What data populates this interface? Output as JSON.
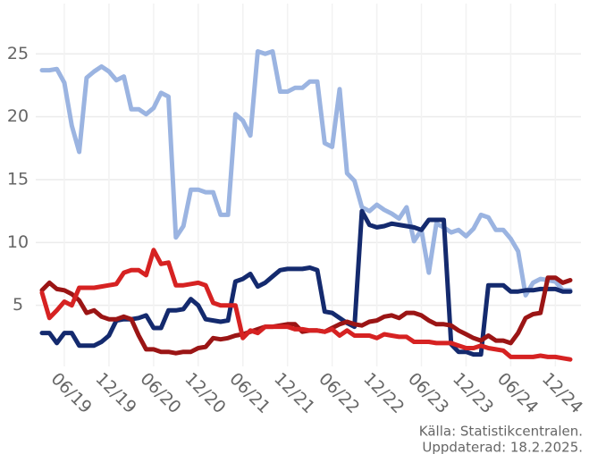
{
  "chart_data": {
    "type": "line",
    "source": "Källa: Statistikcentralen.",
    "updated": "Uppdaterad: 18.2.2025.",
    "x": [
      "03/19",
      "04/19",
      "05/19",
      "06/19",
      "07/19",
      "08/19",
      "09/19",
      "10/19",
      "11/19",
      "12/19",
      "01/20",
      "02/20",
      "03/20",
      "04/20",
      "05/20",
      "06/20",
      "07/20",
      "08/20",
      "09/20",
      "10/20",
      "11/20",
      "12/20",
      "01/21",
      "02/21",
      "03/21",
      "04/21",
      "05/21",
      "06/21",
      "07/21",
      "08/21",
      "09/21",
      "10/21",
      "11/21",
      "12/21",
      "01/22",
      "02/22",
      "03/22",
      "04/22",
      "05/22",
      "06/22",
      "07/22",
      "08/22",
      "09/22",
      "10/22",
      "11/22",
      "12/22",
      "01/23",
      "02/23",
      "03/23",
      "04/23",
      "05/23",
      "06/23",
      "07/23",
      "08/23",
      "09/23",
      "10/23",
      "11/23",
      "12/23",
      "01/24",
      "02/24",
      "03/24",
      "04/24",
      "05/24",
      "06/24",
      "07/24",
      "08/24",
      "09/24",
      "10/24",
      "11/24",
      "12/24",
      "01/25",
      "02/25"
    ],
    "xlim": [
      "03/19",
      "02/25"
    ],
    "xticks": [
      "06/19",
      "12/19",
      "06/20",
      "12/20",
      "06/21",
      "12/21",
      "06/22",
      "12/22",
      "06/23",
      "12/23",
      "06/24",
      "12/24"
    ],
    "ylim": [
      0.5,
      29
    ],
    "yticks": [
      5,
      10,
      15,
      20,
      25
    ],
    "grid": true,
    "series": [
      {
        "color": "#9bb4e1",
        "values": [
          23.7,
          23.7,
          23.8,
          22.7,
          19.3,
          17.2,
          23.1,
          23.6,
          24.0,
          23.6,
          22.9,
          23.2,
          20.6,
          20.6,
          20.2,
          20.7,
          21.9,
          21.6,
          10.4,
          11.3,
          14.2,
          14.2,
          14.0,
          14.0,
          12.2,
          12.2,
          20.2,
          19.7,
          18.5,
          25.2,
          25.0,
          25.2,
          22.0,
          22.0,
          22.3,
          22.3,
          22.8,
          22.8,
          17.9,
          17.6,
          22.2,
          15.5,
          14.9,
          12.8,
          12.5,
          13.0,
          12.6,
          12.3,
          11.9,
          12.8,
          10.1,
          11.0,
          7.6,
          11.5,
          11.2,
          10.8,
          11.0,
          10.5,
          11.1,
          12.2,
          12.0,
          11.0,
          11.0,
          10.3,
          9.3,
          5.8,
          6.8,
          7.1,
          7.0,
          6.9,
          6.2,
          6.2
        ]
      },
      {
        "color": "#142a6e",
        "values": [
          2.8,
          2.8,
          2.0,
          2.8,
          2.8,
          1.8,
          1.8,
          1.8,
          2.1,
          2.6,
          3.8,
          3.9,
          3.9,
          4.0,
          4.2,
          3.2,
          3.2,
          4.6,
          4.6,
          4.7,
          5.5,
          5.0,
          3.9,
          3.8,
          3.7,
          3.8,
          6.9,
          7.1,
          7.5,
          6.5,
          6.8,
          7.3,
          7.8,
          7.9,
          7.9,
          7.9,
          8.0,
          7.8,
          4.5,
          4.4,
          4.0,
          3.6,
          3.3,
          12.5,
          11.4,
          11.2,
          11.3,
          11.5,
          11.4,
          11.3,
          11.2,
          11.0,
          11.8,
          11.8,
          11.8,
          1.9,
          1.3,
          1.3,
          1.1,
          1.1,
          6.6,
          6.6,
          6.6,
          6.1,
          6.1,
          6.2,
          6.2,
          6.3,
          6.3,
          6.3,
          6.1,
          6.1
        ]
      },
      {
        "color": "#9b1515",
        "values": [
          6.2,
          6.8,
          6.3,
          6.2,
          5.9,
          5.4,
          4.4,
          4.6,
          4.1,
          3.9,
          3.9,
          4.1,
          3.9,
          2.6,
          1.5,
          1.5,
          1.3,
          1.3,
          1.2,
          1.3,
          1.3,
          1.6,
          1.7,
          2.4,
          2.3,
          2.4,
          2.6,
          2.7,
          2.9,
          3.1,
          3.3,
          3.3,
          3.4,
          3.5,
          3.5,
          2.9,
          3.0,
          3.0,
          2.9,
          3.2,
          3.5,
          3.7,
          3.5,
          3.4,
          3.7,
          3.8,
          4.1,
          4.2,
          4.0,
          4.4,
          4.4,
          4.2,
          3.8,
          3.5,
          3.5,
          3.4,
          3.0,
          2.7,
          2.4,
          2.2,
          2.6,
          2.2,
          2.2,
          2.0,
          2.8,
          4.0,
          4.3,
          4.4,
          7.2,
          7.2,
          6.8,
          7.0
        ]
      },
      {
        "color": "#d62222",
        "values": [
          6.0,
          4.0,
          4.6,
          5.3,
          5.0,
          6.4,
          6.4,
          6.4,
          6.5,
          6.6,
          6.7,
          7.6,
          7.8,
          7.8,
          7.4,
          9.4,
          8.3,
          8.4,
          6.6,
          6.6,
          6.7,
          6.8,
          6.6,
          5.2,
          5.0,
          5.0,
          5.0,
          2.4,
          3.0,
          2.8,
          3.3,
          3.3,
          3.3,
          3.3,
          3.1,
          3.1,
          3.0,
          3.0,
          2.9,
          3.1,
          2.6,
          3.0,
          2.6,
          2.6,
          2.6,
          2.4,
          2.7,
          2.6,
          2.5,
          2.5,
          2.1,
          2.1,
          2.1,
          2.0,
          2.0,
          2.0,
          1.8,
          1.6,
          1.6,
          1.8,
          1.6,
          1.5,
          1.4,
          0.9,
          0.9,
          0.9,
          0.9,
          1.0,
          0.9,
          0.9,
          0.8,
          0.7
        ]
      }
    ]
  }
}
